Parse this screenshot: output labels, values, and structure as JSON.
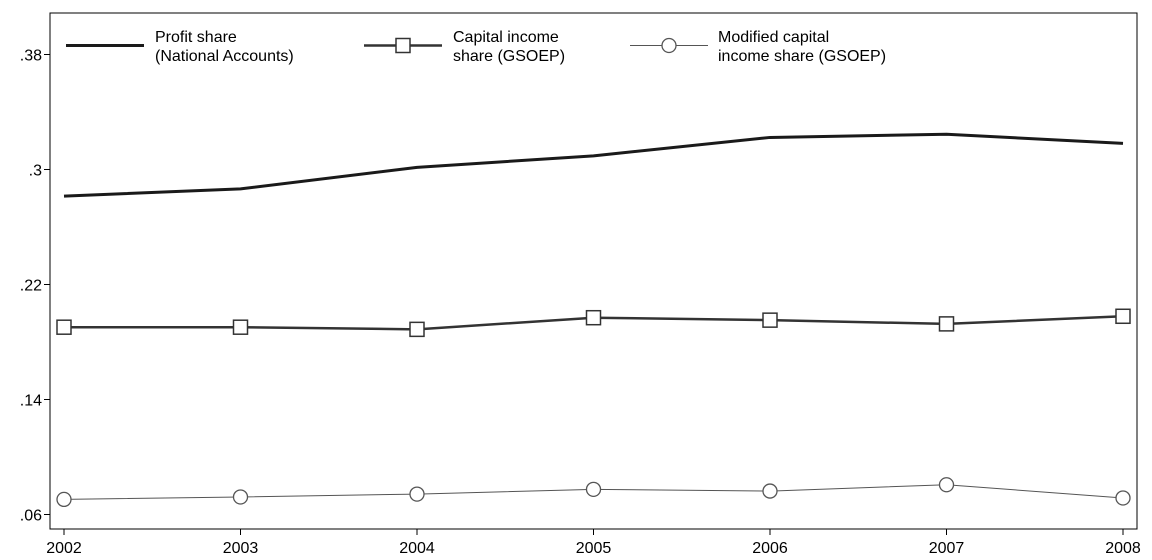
{
  "chart_data": {
    "type": "line",
    "x": [
      "2002",
      "2003",
      "2004",
      "2005",
      "2006",
      "2007",
      "2008"
    ],
    "xlim": [
      2002,
      2008
    ],
    "ylim": [
      0.06,
      0.4
    ],
    "yticks": [
      ".06",
      ".14",
      ".22",
      ".3",
      ".38"
    ],
    "ytick_values": [
      0.06,
      0.14,
      0.22,
      0.3,
      0.38
    ],
    "grid": false,
    "legend_position": "top",
    "series": [
      {
        "name_lines": [
          "Profit share",
          "(National Accounts)"
        ],
        "values": [
          0.2815,
          0.2865,
          0.3015,
          0.3095,
          0.3223,
          0.3245,
          0.3182
        ],
        "color": "#1a1a1a",
        "marker": "none"
      },
      {
        "name_lines": [
          "Capital income",
          "share (GSOEP)"
        ],
        "values": [
          0.1903,
          0.1903,
          0.1888,
          0.1969,
          0.1952,
          0.1926,
          0.1979
        ],
        "color": "#333333",
        "marker": "square"
      },
      {
        "name_lines": [
          "Modified capital",
          "income share (GSOEP)"
        ],
        "values": [
          0.0705,
          0.0722,
          0.0742,
          0.0775,
          0.0763,
          0.0807,
          0.0715
        ],
        "color": "#555555",
        "marker": "circle"
      }
    ]
  }
}
